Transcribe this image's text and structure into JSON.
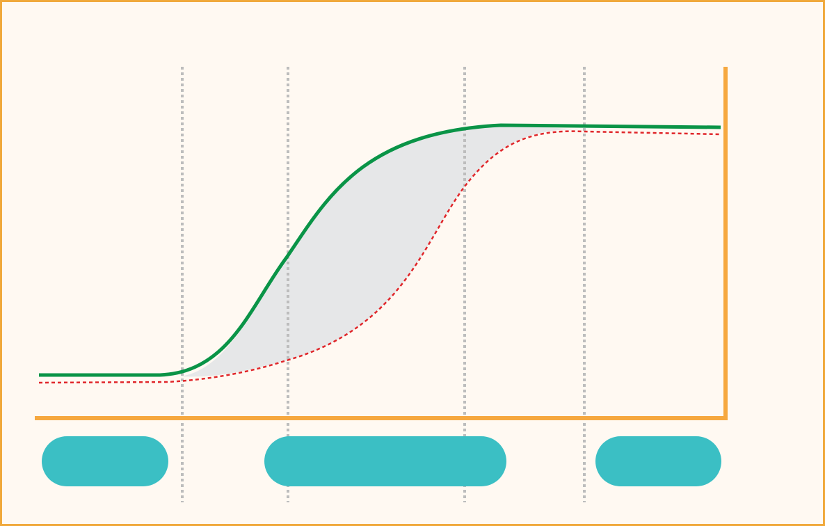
{
  "diagram": {
    "colors": {
      "background": "#fff9f2",
      "frame": "#f0a93c",
      "axis": "#f6a83f",
      "guide": "#bdbdbd",
      "curve_solid": "#0a9447",
      "curve_dashed": "#e0262a",
      "band_fill": "#e6e7e8",
      "pill": "#3bbfc4"
    },
    "curves": [
      {
        "id": "solid-curve",
        "style": "solid"
      },
      {
        "id": "dashed-curve",
        "style": "dashed"
      }
    ],
    "guides": [
      "guide-1",
      "guide-2",
      "guide-3",
      "guide-4"
    ],
    "pills": [
      {
        "id": "pill-left",
        "label": ""
      },
      {
        "id": "pill-center",
        "label": ""
      },
      {
        "id": "pill-right",
        "label": ""
      }
    ]
  }
}
